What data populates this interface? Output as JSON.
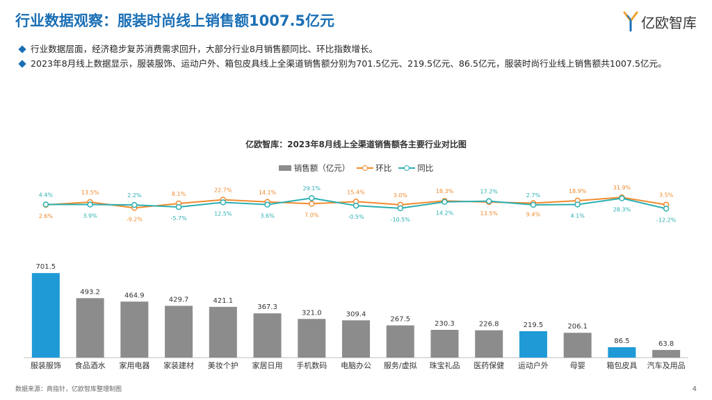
{
  "header": {
    "title": "行业数据观察：服装时尚线上销售额1007.5亿元",
    "logo_text": "亿欧智库"
  },
  "bullets": [
    "行业数据层面，经济稳步复苏消费需求回升，大部分行业8月销售额同比、环比指数增长。",
    "2023年8月线上数据显示，服装服饰、运动户外、箱包皮具线上全渠道销售额分别为701.5亿元、219.5亿元、86.5亿元，服装时尚行业线上销售额共1007.5亿元。"
  ],
  "footer": {
    "source": "数据来源：商指针，亿欧智库整理制图",
    "page": "4"
  },
  "colors": {
    "bar_default": "#8c8c8c",
    "bar_highlight": "#1f9ad6",
    "mom": "#f08a2c",
    "yoy": "#2aaeb0",
    "title": "#1a6fb5"
  },
  "chart_data": {
    "type": "bar",
    "title": "亿欧智库：2023年8月线上全渠道销售额各主要行业对比图",
    "categories": [
      "服装服饰",
      "食品酒水",
      "家用电器",
      "家装建材",
      "美妆个护",
      "家居日用",
      "手机数码",
      "电脑办公",
      "服务/虚拟",
      "珠宝礼品",
      "医药保健",
      "运动户外",
      "母婴",
      "箱包皮具",
      "汽车及用品"
    ],
    "series": [
      {
        "name": "销售额（亿元）",
        "kind": "bar",
        "values": [
          701.5,
          493.2,
          464.9,
          429.7,
          421.1,
          367.3,
          321.0,
          309.4,
          267.5,
          230.3,
          226.8,
          219.5,
          206.1,
          86.5,
          63.8
        ],
        "labels": [
          "701.5",
          "493.2",
          "464.9",
          "429.7",
          "421.1",
          "367.3",
          "321.0",
          "309.4",
          "267.5",
          "230.3",
          "226.8",
          "219.5",
          "206.1",
          "86.5",
          "63.8"
        ],
        "highlight": [
          "服装服饰",
          "运动户外",
          "箱包皮具"
        ]
      },
      {
        "name": "环比",
        "kind": "line",
        "unit": "%",
        "values": [
          2.6,
          13.5,
          -9.2,
          8.1,
          22.7,
          14.1,
          7.0,
          15.4,
          3.0,
          18.3,
          13.5,
          9.4,
          18.9,
          31.9,
          3.5
        ],
        "labels": [
          "2.6%",
          "13.5%",
          "-9.2%",
          "8.1%",
          "22.7%",
          "14.1%",
          "7.0%",
          "15.4%",
          "3.0%",
          "18.3%",
          "13.5%",
          "9.4%",
          "18.9%",
          "31.9%",
          "3.5%"
        ]
      },
      {
        "name": "同比",
        "kind": "line",
        "unit": "%",
        "values": [
          4.4,
          3.9,
          2.2,
          -5.7,
          12.5,
          3.6,
          29.1,
          -0.5,
          -10.5,
          14.2,
          17.2,
          2.7,
          4.1,
          28.3,
          -12.2
        ],
        "labels": [
          "4.4%",
          "3.9%",
          "2.2%",
          "-5.7%",
          "12.5%",
          "3.6%",
          "29.1%",
          "-0.5%",
          "-10.5%",
          "14.2%",
          "17.2%",
          "2.7%",
          "4.1%",
          "28.3%",
          "-12.2%"
        ]
      }
    ],
    "line_label_pos": {
      "mom": [
        "below",
        "above",
        "below",
        "above",
        "above",
        "above",
        "below",
        "above",
        "above",
        "above",
        "below",
        "below",
        "above",
        "above",
        "above"
      ],
      "yoy": [
        "above",
        "below",
        "above",
        "below",
        "below",
        "below",
        "above",
        "below",
        "below",
        "below",
        "above",
        "above",
        "below",
        "below",
        "below"
      ]
    },
    "ylim_bar": [
      0,
      750
    ],
    "ylim_line": [
      -15,
      35
    ],
    "legend": [
      "销售额（亿元）",
      "环比",
      "同比"
    ],
    "legend_position": "top-center"
  }
}
